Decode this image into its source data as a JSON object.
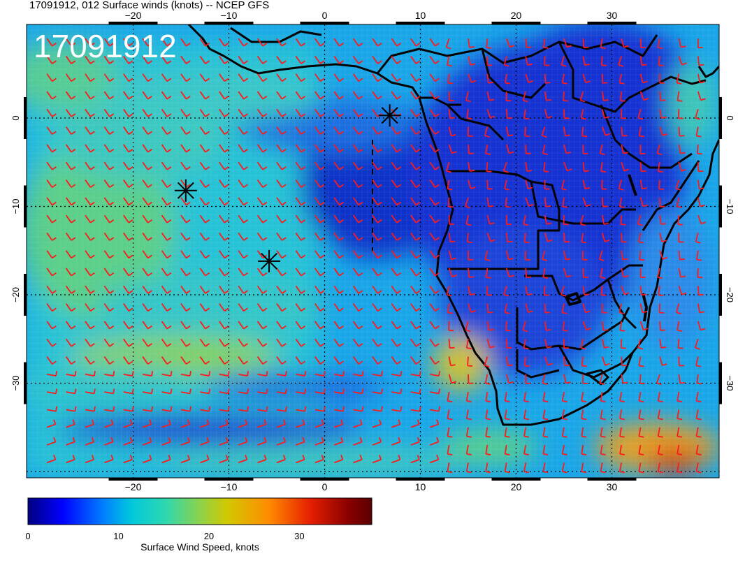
{
  "title": "17091912, 012 Surface winds (knots) -- NCEP GFS",
  "date_stamp": "17091912",
  "map": {
    "lon_range": [
      -30,
      40
    ],
    "lat_range": [
      -40,
      10
    ],
    "lon_ticks": [
      {
        "value": -20,
        "label": "−20"
      },
      {
        "value": -10,
        "label": "−10"
      },
      {
        "value": 0,
        "label": "0"
      },
      {
        "value": 10,
        "label": "10"
      },
      {
        "value": 20,
        "label": "20"
      },
      {
        "value": 30,
        "label": "30"
      }
    ],
    "lat_ticks": [
      {
        "value": 0,
        "label": "0"
      },
      {
        "value": -10,
        "label": "−10"
      },
      {
        "value": -20,
        "label": "−20"
      },
      {
        "value": -30,
        "label": "−30"
      }
    ],
    "grid": true,
    "wind_barb_color": "#ff1a1a",
    "coastline_color": "#000000",
    "markers": [
      {
        "name": "asterisk",
        "lon": 6.8,
        "lat": 0.3
      },
      {
        "name": "asterisk",
        "lon": -14.5,
        "lat": -8.2
      },
      {
        "name": "asterisk",
        "lon": -5.8,
        "lat": -16.2
      }
    ]
  },
  "colorbar": {
    "label": "Surface Wind Speed, knots",
    "min": 0,
    "max": 38,
    "ticks": [
      {
        "value": 0,
        "label": "0"
      },
      {
        "value": 10,
        "label": "10"
      },
      {
        "value": 20,
        "label": "20"
      },
      {
        "value": 30,
        "label": "30"
      }
    ],
    "stops": [
      "#000080",
      "#0000ff",
      "#0080ff",
      "#00c8dc",
      "#2ed8b0",
      "#8cd24a",
      "#d2c800",
      "#ff8c00",
      "#e62000",
      "#8b0000",
      "#5a0000"
    ]
  }
}
